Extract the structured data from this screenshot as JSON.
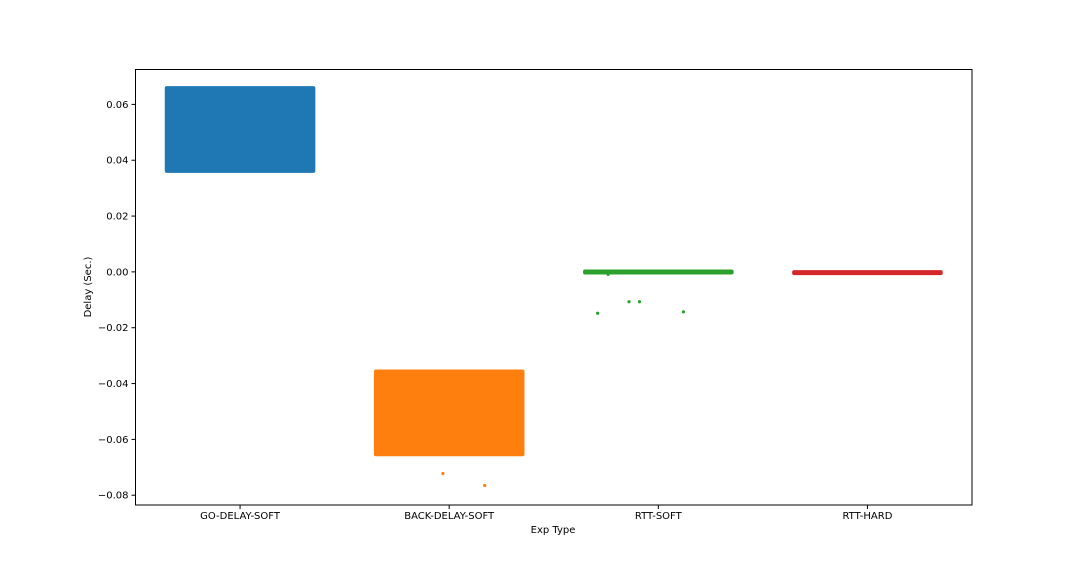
{
  "chart_data": {
    "type": "scatter",
    "title": "",
    "xlabel": "Exp Type",
    "ylabel": "Delay (Sec.)",
    "categories": [
      "GO-DELAY-SOFT",
      "BACK-DELAY-SOFT",
      "RTT-SOFT",
      "RTT-HARD"
    ],
    "ylim": [
      -0.0835,
      0.0725
    ],
    "yticks": [
      -0.08,
      -0.06,
      -0.04,
      -0.02,
      0.0,
      0.02,
      0.04,
      0.06
    ],
    "ytick_labels": [
      "−0.08",
      "−0.06",
      "−0.04",
      "−0.02",
      "0.00",
      "0.02",
      "0.04",
      "0.06"
    ],
    "grid": false,
    "legend": "none",
    "series": [
      {
        "category": "GO-DELAY-SOFT",
        "color": "#1f77b4",
        "y_range": [
          0.036,
          0.066
        ],
        "outliers": []
      },
      {
        "category": "BACK-DELAY-SOFT",
        "color": "#ff7f0e",
        "y_range": [
          -0.0655,
          -0.0355
        ],
        "outliers": [
          {
            "x_offset": -0.03,
            "y": -0.0722
          },
          {
            "x_offset": 0.17,
            "y": -0.0765
          }
        ]
      },
      {
        "category": "RTT-SOFT",
        "color": "#2ca02c",
        "y_range": [
          -0.0002,
          0.0003
        ],
        "outliers": [
          {
            "x_offset": -0.29,
            "y": -0.0148
          },
          {
            "x_offset": -0.14,
            "y": -0.0107
          },
          {
            "x_offset": -0.09,
            "y": -0.0107
          },
          {
            "x_offset": 0.12,
            "y": -0.0143
          },
          {
            "x_offset": -0.24,
            "y": -0.0009
          }
        ]
      },
      {
        "category": "RTT-HARD",
        "color": "#d62728",
        "y_range": [
          -0.0001,
          0.0001
        ],
        "outliers": []
      }
    ]
  }
}
